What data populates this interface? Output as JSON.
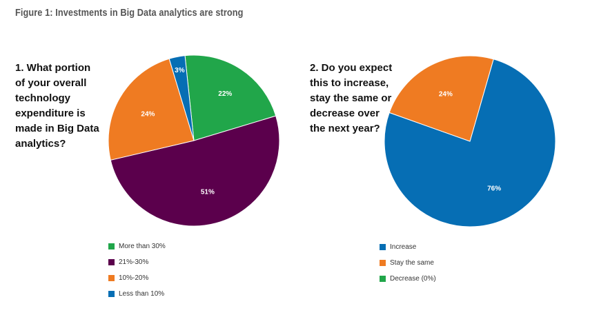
{
  "title": "Figure 1: Investments in Big Data analytics are strong",
  "chart_data": [
    {
      "type": "pie",
      "question": "1. What portion\nof your overall\ntechnology\nexpenditure is\nmade in Big Data\nanalytics?",
      "slices": [
        {
          "label": "More than 30%",
          "value": 22,
          "value_label": "22%",
          "color": "#21a64a"
        },
        {
          "label": "21%-30%",
          "value": 51,
          "value_label": "51%",
          "color": "#5b004c"
        },
        {
          "label": "10%-20%",
          "value": 24,
          "value_label": "24%",
          "color": "#ef7b22"
        },
        {
          "label": "Less than 10%",
          "value": 3,
          "value_label": "3%",
          "color": "#066eb4"
        }
      ],
      "legend_placement": "bottom"
    },
    {
      "type": "pie",
      "question": "2. Do you expect\nthis to increase,\nstay the same or\ndecrease over\nthe next year?",
      "slices": [
        {
          "label": "Increase",
          "value": 76,
          "value_label": "76%",
          "color": "#066eb4"
        },
        {
          "label": "Stay the same",
          "value": 24,
          "value_label": "24%",
          "color": "#ef7b22"
        },
        {
          "label": "Decrease (0%)",
          "value": 0,
          "value_label": "",
          "color": "#21a64a"
        }
      ],
      "legend_placement": "bottom"
    }
  ]
}
